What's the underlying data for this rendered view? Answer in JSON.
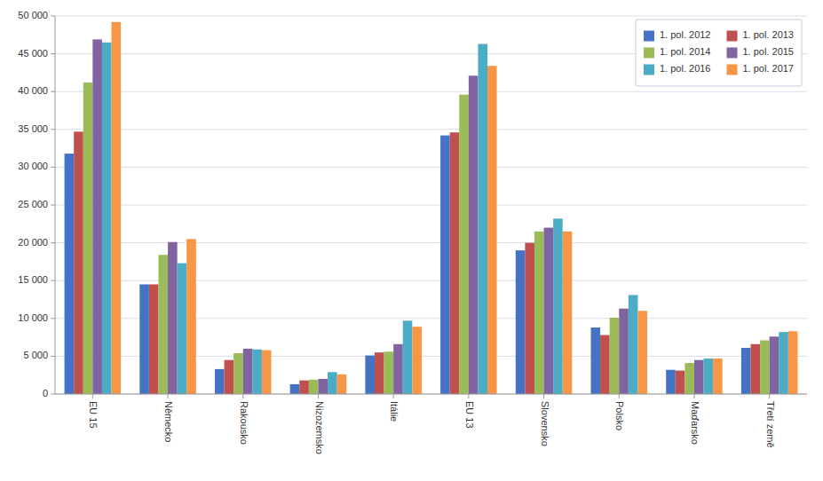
{
  "chart_data": {
    "type": "bar",
    "categories": [
      "EU 15",
      "Německo",
      "Rakousko",
      "Nizozemsko",
      "Itálie",
      "EU 13",
      "Slovensko",
      "Polsko",
      "Maďarsko",
      "Třetí země"
    ],
    "series": [
      {
        "name": "1. pol. 2012",
        "color": "#4472C4",
        "values": [
          31800,
          14500,
          3300,
          1300,
          5100,
          34200,
          19000,
          8800,
          3200,
          6100
        ]
      },
      {
        "name": "1. pol. 2013",
        "color": "#C0504D",
        "values": [
          34700,
          14500,
          4500,
          1800,
          5500,
          34600,
          20000,
          7800,
          3100,
          6600
        ]
      },
      {
        "name": "1. pol. 2014",
        "color": "#9BBB59",
        "values": [
          41200,
          18400,
          5400,
          1900,
          5600,
          39600,
          21500,
          10100,
          4100,
          7100
        ]
      },
      {
        "name": "1. pol. 2015",
        "color": "#8064A2",
        "values": [
          46900,
          20100,
          6000,
          2000,
          6600,
          42100,
          22000,
          11300,
          4500,
          7600
        ]
      },
      {
        "name": "1. pol. 2016",
        "color": "#4BACC6",
        "values": [
          46500,
          17300,
          5900,
          2900,
          9700,
          46300,
          23200,
          13100,
          4700,
          8200
        ]
      },
      {
        "name": "1. pol. 2017",
        "color": "#F79646",
        "values": [
          49200,
          20500,
          5800,
          2600,
          8900,
          43400,
          21500,
          11000,
          4700,
          8300
        ]
      }
    ],
    "ylim": [
      0,
      50000
    ],
    "yticks": [
      0,
      {
        "value": 5000,
        "label": "5 000"
      },
      {
        "value": 10000,
        "label": "10 000"
      },
      {
        "value": 15000,
        "label": "15 000"
      },
      {
        "value": 20000,
        "label": "20 000"
      },
      {
        "value": 25000,
        "label": "25 000"
      },
      {
        "value": 30000,
        "label": "30 000"
      },
      {
        "value": 35000,
        "label": "35 000"
      },
      {
        "value": 40000,
        "label": "40 000"
      },
      {
        "value": 45000,
        "label": "45 000"
      },
      {
        "value": 50000,
        "label": "50 000"
      }
    ],
    "grid": true,
    "legend": "top-right"
  }
}
